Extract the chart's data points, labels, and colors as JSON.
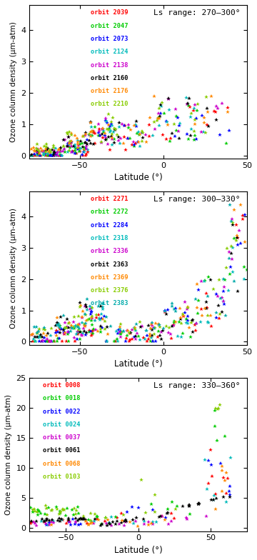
{
  "panel1": {
    "title": "Ls range: 270–300°",
    "xlim": [
      -80,
      50
    ],
    "ylim": [
      -0.1,
      4.8
    ],
    "yticks": [
      0,
      1,
      2,
      3,
      4
    ],
    "xticks": [
      -50,
      0,
      50
    ],
    "orbits": [
      {
        "label": "orbit 2039",
        "color": "#ff0000"
      },
      {
        "label": "orbit 2047",
        "color": "#00cc00"
      },
      {
        "label": "orbit 2073",
        "color": "#0000ff"
      },
      {
        "label": "orbit 2124",
        "color": "#00bbbb"
      },
      {
        "label": "orbit 2138",
        "color": "#cc00cc"
      },
      {
        "label": "orbit 2160",
        "color": "#000000"
      },
      {
        "label": "orbit 2176",
        "color": "#ff8800"
      },
      {
        "label": "orbit 2210",
        "color": "#88cc00"
      }
    ]
  },
  "panel2": {
    "title": "Ls range: 300–330°",
    "xlim": [
      -80,
      50
    ],
    "ylim": [
      -0.1,
      4.8
    ],
    "yticks": [
      0,
      1,
      2,
      3,
      4
    ],
    "xticks": [
      -50,
      0,
      50
    ],
    "orbits": [
      {
        "label": "orbit 2271",
        "color": "#ff0000"
      },
      {
        "label": "orbit 2272",
        "color": "#00cc00"
      },
      {
        "label": "orbit 2284",
        "color": "#0000ff"
      },
      {
        "label": "orbit 2318",
        "color": "#00bbbb"
      },
      {
        "label": "orbit 2336",
        "color": "#cc00cc"
      },
      {
        "label": "orbit 2363",
        "color": "#000000"
      },
      {
        "label": "orbit 2369",
        "color": "#ff8800"
      },
      {
        "label": "orbit 2376",
        "color": "#88cc00"
      },
      {
        "label": "orbit 2383",
        "color": "#00aaaa"
      }
    ]
  },
  "panel3": {
    "title": "Ls range: 330–360°",
    "xlim": [
      -75,
      75
    ],
    "ylim": [
      -0.5,
      25
    ],
    "yticks": [
      0,
      5,
      10,
      15,
      20,
      25
    ],
    "xticks": [
      -50,
      0,
      50
    ],
    "orbits": [
      {
        "label": "orbit 0008",
        "color": "#ff0000"
      },
      {
        "label": "orbit 0018",
        "color": "#00cc00"
      },
      {
        "label": "orbit 0022",
        "color": "#0000ff"
      },
      {
        "label": "orbit 0024",
        "color": "#00bbbb"
      },
      {
        "label": "orbit 0037",
        "color": "#cc00cc"
      },
      {
        "label": "orbit 0061",
        "color": "#000000"
      },
      {
        "label": "orbit 0068",
        "color": "#ff8800"
      },
      {
        "label": "orbit 0103",
        "color": "#88cc00"
      }
    ]
  },
  "ylabel": "Ozone column density (μm-atm)",
  "xlabel": "Latitude (°)"
}
